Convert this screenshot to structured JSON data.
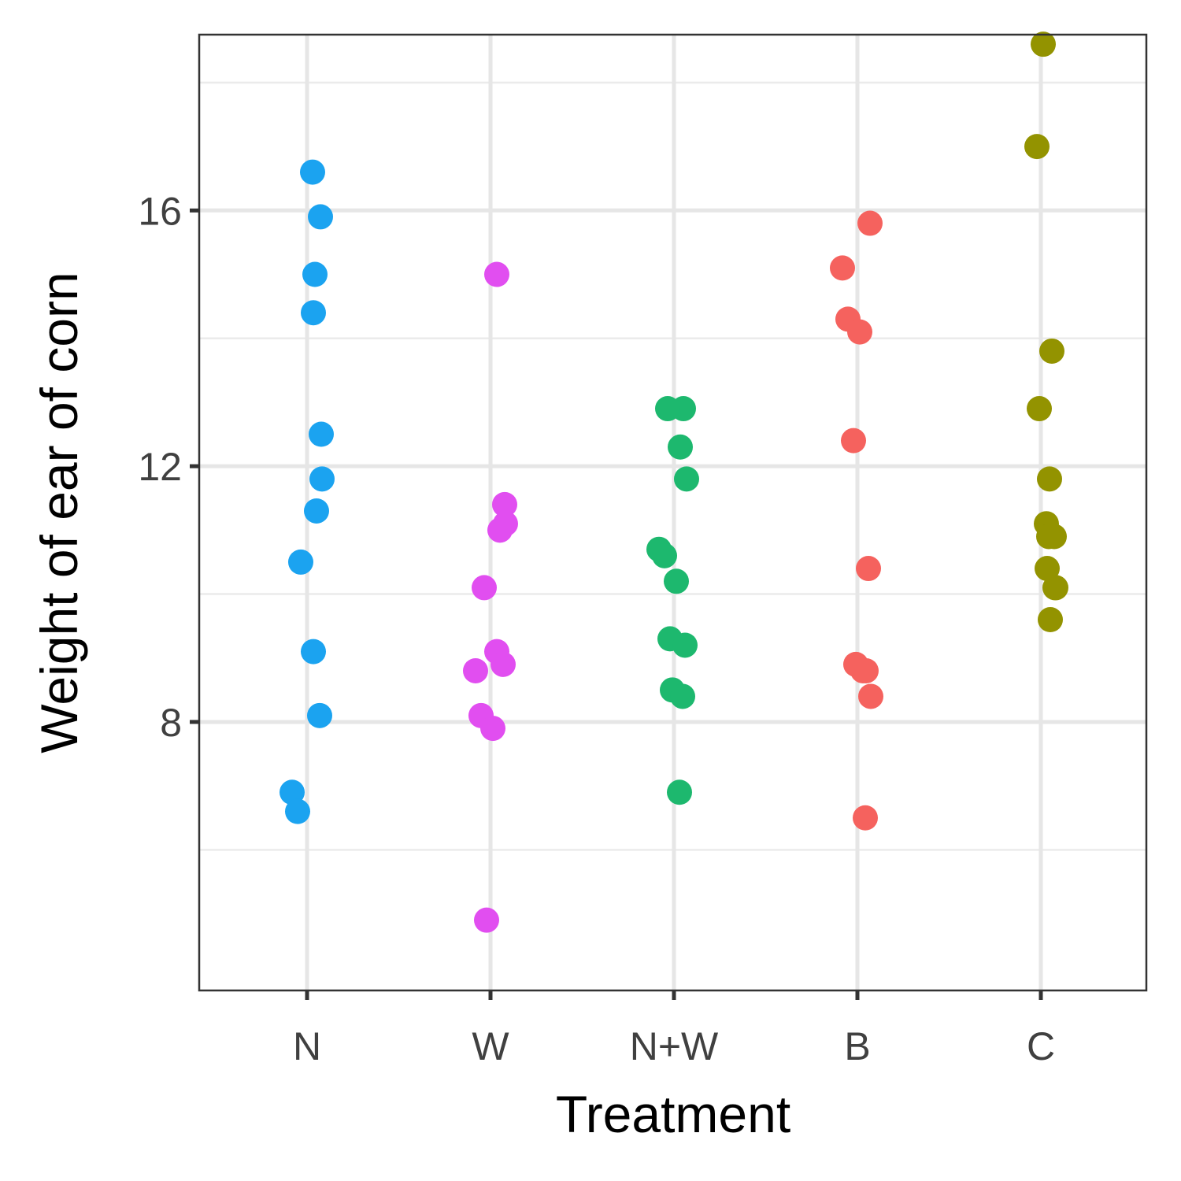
{
  "chart_data": {
    "type": "scatter",
    "xlabel": "Treatment",
    "ylabel": "Weight of ear of corn",
    "categories": [
      "N",
      "W",
      "N+W",
      "B",
      "C"
    ],
    "ylim": [
      3.8,
      18.75
    ],
    "yticks": [
      8,
      12,
      16
    ],
    "grid": true,
    "legend": "none",
    "colors": {
      "N": "#1ba3f0",
      "W": "#e14ef0",
      "N+W": "#1db86e",
      "B": "#f5625e",
      "C": "#939300"
    },
    "series": [
      {
        "category": "N",
        "values": [
          16.6,
          15.9,
          15.0,
          14.4,
          12.5,
          11.8,
          11.3,
          10.5,
          9.1,
          8.1,
          6.9,
          6.6
        ]
      },
      {
        "category": "W",
        "values": [
          15.0,
          11.4,
          11.1,
          11.0,
          10.1,
          9.1,
          8.9,
          8.8,
          8.1,
          7.9,
          4.9
        ]
      },
      {
        "category": "N+W",
        "values": [
          12.9,
          12.9,
          12.3,
          11.8,
          10.7,
          10.6,
          10.2,
          9.3,
          9.2,
          8.5,
          8.4,
          6.9
        ]
      },
      {
        "category": "B",
        "values": [
          15.8,
          15.1,
          14.3,
          14.1,
          12.4,
          10.4,
          8.9,
          8.8,
          8.8,
          8.4,
          6.5
        ]
      },
      {
        "category": "C",
        "values": [
          18.6,
          17.0,
          13.8,
          12.9,
          11.8,
          11.1,
          10.9,
          10.9,
          10.4,
          10.1,
          10.1,
          9.6
        ]
      }
    ]
  }
}
